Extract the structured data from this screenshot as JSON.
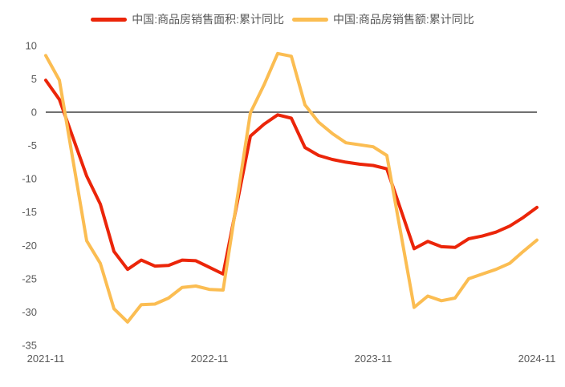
{
  "colors": {
    "background": "#ffffff",
    "axis_text": "#595959",
    "zero_line": "#404040",
    "series_area": "#EB2509",
    "series_value": "#FBBD52"
  },
  "chart_data": {
    "type": "line",
    "title": "",
    "xlabel": "",
    "ylabel": "",
    "grid": false,
    "legend_position": "top",
    "zero_line": true,
    "ylim": [
      -35,
      10
    ],
    "y_ticks": [
      10,
      5,
      0,
      -5,
      -10,
      -15,
      -20,
      -25,
      -30,
      -35
    ],
    "x_ticks": [
      "2021-11",
      "2022-11",
      "2023-11",
      "2024-11"
    ],
    "x": [
      "2021-11",
      "2021-12",
      "2022-02",
      "2022-03",
      "2022-04",
      "2022-05",
      "2022-06",
      "2022-07",
      "2022-08",
      "2022-09",
      "2022-10",
      "2022-11",
      "2022-12",
      "2023-02",
      "2023-03",
      "2023-04",
      "2023-05",
      "2023-06",
      "2023-07",
      "2023-08",
      "2023-09",
      "2023-10",
      "2023-11",
      "2023-12",
      "2024-02",
      "2024-03",
      "2024-04",
      "2024-05",
      "2024-06",
      "2024-07",
      "2024-08",
      "2024-09",
      "2024-10",
      "2024-11"
    ],
    "series": [
      {
        "name": "中国:商品房销售面积:累计同比",
        "color": "#EB2509",
        "values": [
          4.8,
          1.9,
          -9.6,
          -13.8,
          -20.9,
          -23.6,
          -22.2,
          -23.1,
          -23.0,
          -22.2,
          -22.3,
          -23.3,
          -24.3,
          -3.6,
          -1.8,
          -0.4,
          -0.9,
          -5.3,
          -6.5,
          -7.1,
          -7.5,
          -7.8,
          -8.0,
          -8.5,
          -20.5,
          -19.4,
          -20.2,
          -20.3,
          -19.0,
          -18.6,
          -18.0,
          -17.1,
          -15.8,
          -14.3
        ]
      },
      {
        "name": "中国:商品房销售额:累计同比",
        "color": "#FBBD52",
        "values": [
          8.5,
          4.8,
          -19.3,
          -22.7,
          -29.5,
          -31.5,
          -28.9,
          -28.8,
          -27.9,
          -26.3,
          -26.1,
          -26.6,
          -26.7,
          -0.1,
          4.1,
          8.8,
          8.4,
          1.1,
          -1.5,
          -3.2,
          -4.6,
          -4.9,
          -5.2,
          -6.5,
          -29.3,
          -27.6,
          -28.3,
          -27.9,
          -25.0,
          -24.3,
          -23.6,
          -22.7,
          -20.9,
          -19.2
        ]
      }
    ]
  }
}
